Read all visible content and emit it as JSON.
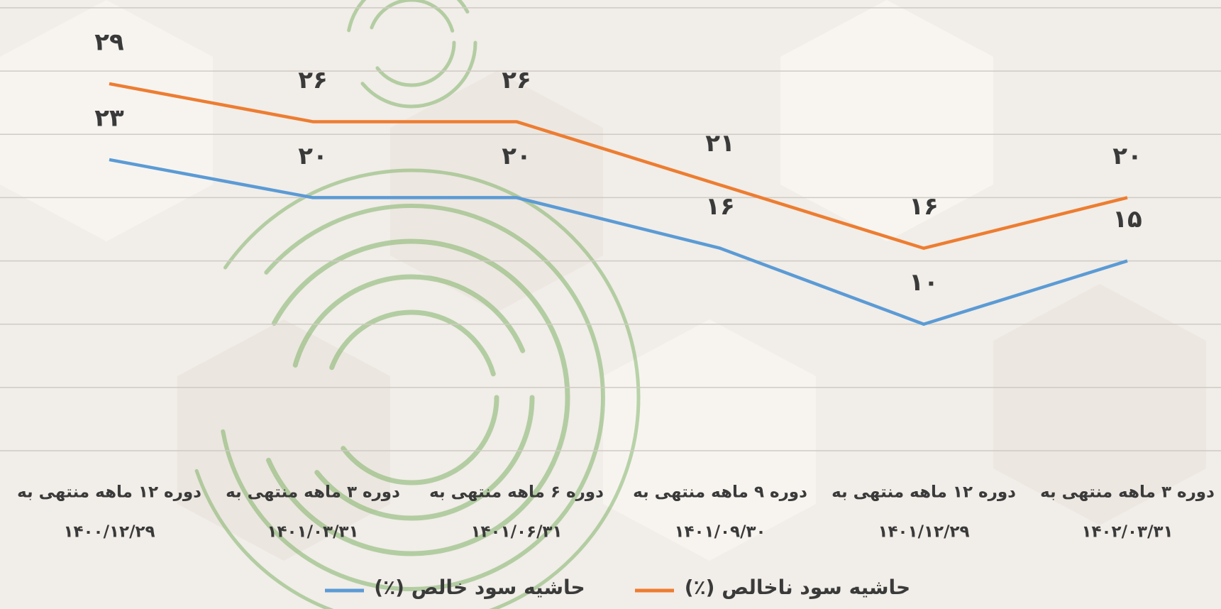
{
  "chart_data": {
    "type": "line",
    "categories": [
      [
        "دوره ۱۲ ماهه منتهی به",
        "۱۴۰۰/۱۲/۲۹"
      ],
      [
        "دوره ۳ ماهه منتهی به",
        "۱۴۰۱/۰۳/۳۱"
      ],
      [
        "دوره ۶ ماهه منتهی به",
        "۱۴۰۱/۰۶/۳۱"
      ],
      [
        "دوره ۹ ماهه منتهی به",
        "۱۴۰۱/۰۹/۳۰"
      ],
      [
        "دوره ۱۲ ماهه منتهی به",
        "۱۴۰۱/۱۲/۲۹"
      ],
      [
        "دوره ۳ ماهه منتهی به",
        "۱۴۰۲/۰۳/۳۱"
      ]
    ],
    "series": [
      {
        "name": "حاشیه سود ناخالص (٪)",
        "color": "#ed7d31",
        "values": [
          29,
          26,
          26,
          21,
          16,
          20
        ],
        "value_labels": [
          "۲۹",
          "۲۶",
          "۲۶",
          "۲۱",
          "۱۶",
          "۲۰"
        ]
      },
      {
        "name": "حاشیه سود خالص (٪)",
        "color": "#5b9bd5",
        "values": [
          23,
          20,
          20,
          16,
          10,
          15
        ],
        "value_labels": [
          "۲۳",
          "۲۰",
          "۲۰",
          "۱۶",
          "۱۰",
          "۱۵"
        ]
      }
    ],
    "ylim": [
      0,
      35
    ],
    "yticks": [
      0,
      5,
      10,
      15,
      20,
      25,
      30,
      35
    ],
    "grid": true,
    "legend": "bottom"
  }
}
